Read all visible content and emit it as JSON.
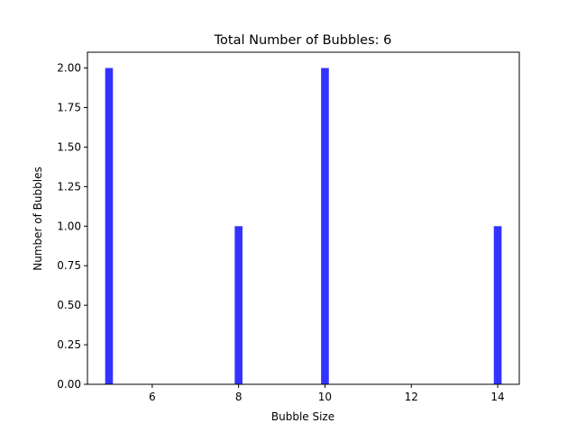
{
  "chart_data": {
    "type": "bar",
    "title": "Total Number of Bubbles: 6",
    "xlabel": "Bubble Size",
    "ylabel": "Number of Bubbles",
    "x": [
      5,
      8,
      10,
      14
    ],
    "values": [
      2,
      1,
      2,
      1
    ],
    "bar_width": 0.18,
    "xlim": [
      4.5,
      14.5
    ],
    "ylim": [
      0,
      2.1
    ],
    "xticks": [
      6,
      8,
      10,
      12,
      14
    ],
    "yticks": [
      0.0,
      0.25,
      0.5,
      0.75,
      1.0,
      1.25,
      1.5,
      1.75,
      2.0
    ],
    "ytick_labels": [
      "0.00",
      "0.25",
      "0.50",
      "0.75",
      "1.00",
      "1.25",
      "1.50",
      "1.75",
      "2.00"
    ],
    "xtick_labels": [
      "6",
      "8",
      "10",
      "12",
      "14"
    ],
    "bar_color": "#3333ff",
    "grid": false,
    "legend": "none"
  }
}
